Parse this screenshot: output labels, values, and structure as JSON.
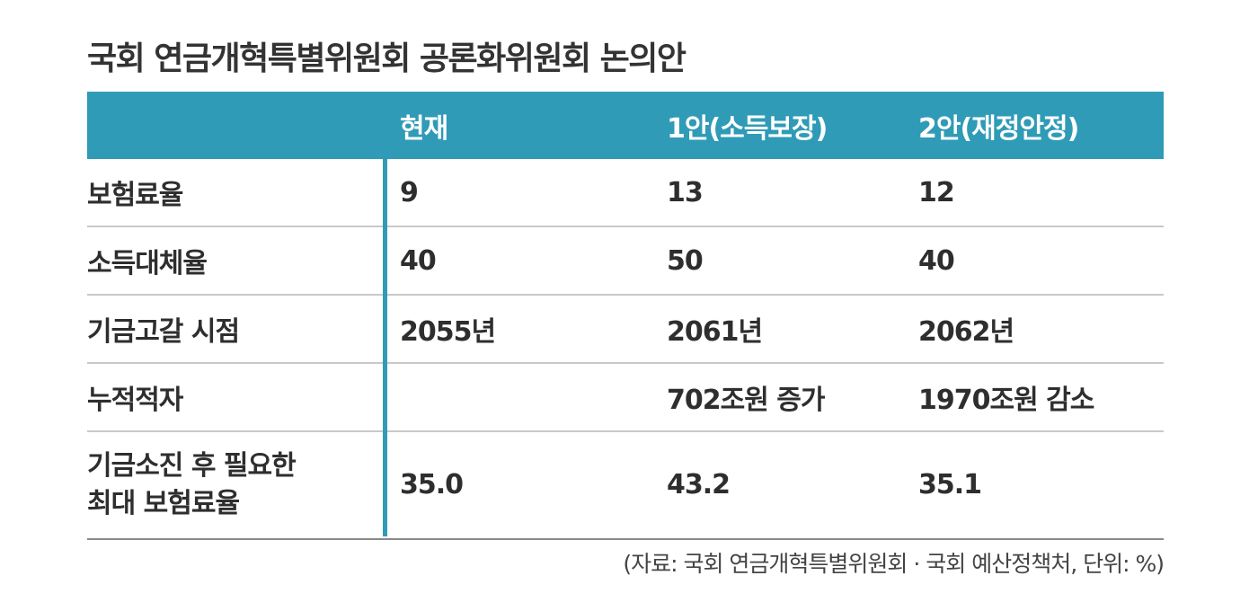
{
  "chart_data": {
    "type": "table",
    "title": "국회 연금개혁특별위원회 공론화위원회 논의안",
    "columns": [
      "",
      "현재",
      "1안(소득보장)",
      "2안(재정안정)"
    ],
    "rows": [
      {
        "label": "보험료율",
        "values": [
          "9",
          "13",
          "12"
        ]
      },
      {
        "label": "소득대체율",
        "values": [
          "40",
          "50",
          "40"
        ]
      },
      {
        "label": "기금고갈 시점",
        "values": [
          "2055년",
          "2061년",
          "2062년"
        ]
      },
      {
        "label": "누적적자",
        "values": [
          "",
          "702조원 증가",
          "1970조원 감소"
        ]
      },
      {
        "label_lines": [
          "기금소진 후 필요한",
          "최대 보험료율"
        ],
        "values": [
          "35.0",
          "43.2",
          "35.1"
        ]
      }
    ],
    "source": "(자료: 국회 연금개혁특별위원회 · 국회 예산정책처, 단위: %)",
    "header_color": "#2f9bb6"
  }
}
